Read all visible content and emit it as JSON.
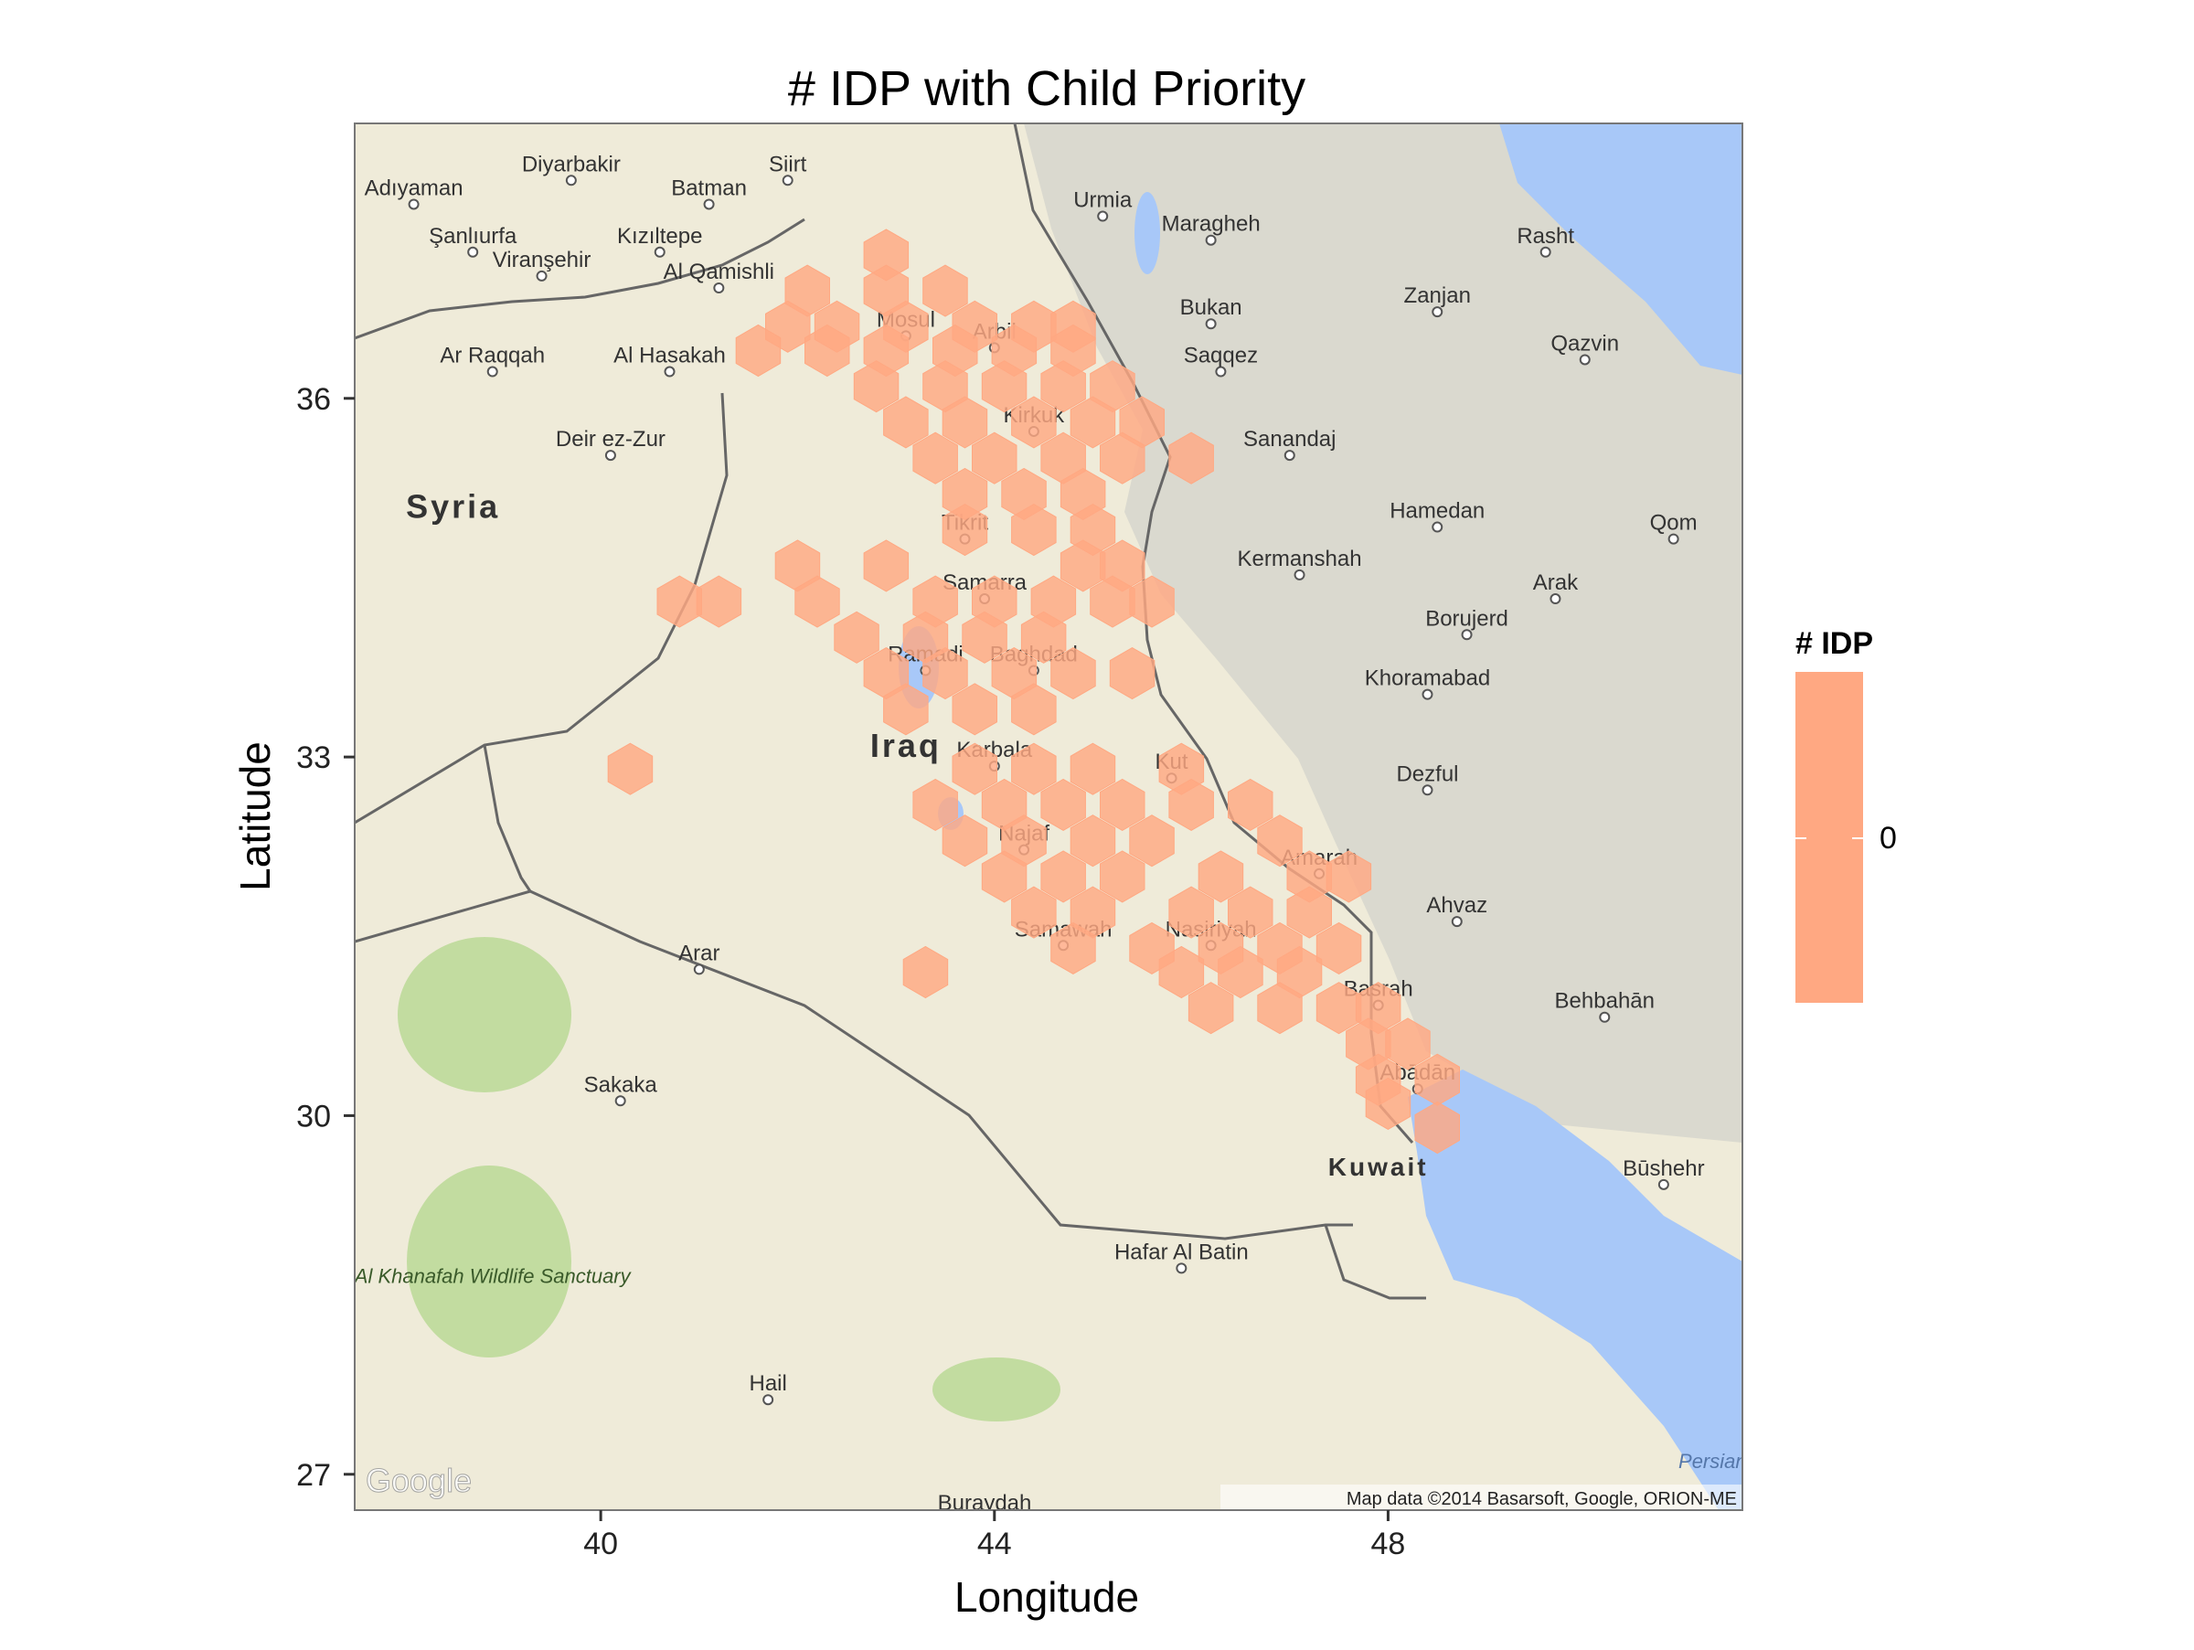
{
  "title": "# IDP with Child Priority",
  "axes": {
    "xlabel": "Longitude",
    "ylabel": "Latitude",
    "xlim": [
      37.5,
      51.6
    ],
    "ylim": [
      26.7,
      38.3
    ],
    "xticks": [
      40,
      44,
      48
    ],
    "yticks": [
      27,
      30,
      33,
      36
    ]
  },
  "legend": {
    "title": "# IDP",
    "tick_label": "0",
    "color": "#FFA882",
    "placement": "right"
  },
  "colors": {
    "fill": "#FFA882",
    "land": "#EFEBD9",
    "water": "#A8C8F8",
    "mountain": "#D6D6CC",
    "green": "#C2DCA0",
    "border": "#666666"
  },
  "map": {
    "attribution": "Map data ©2014 Basarsoft, Google, ORION-ME",
    "logo_text": "Google",
    "water_labels": [
      {
        "text": "Persian G",
        "lon": 50.95,
        "lat": 27.05
      }
    ],
    "countries": [
      {
        "name": "Syria",
        "lon": 38.5,
        "lat": 35.0
      },
      {
        "name": "Iraq",
        "lon": 43.1,
        "lat": 33.0
      },
      {
        "name": "Kuwait",
        "lon": 47.9,
        "lat": 29.5
      }
    ],
    "cities": [
      {
        "name": "Diyarbakir",
        "lon": 39.7,
        "lat": 37.9
      },
      {
        "name": "Siirt",
        "lon": 41.9,
        "lat": 37.9
      },
      {
        "name": "Batman",
        "lon": 41.1,
        "lat": 37.7
      },
      {
        "name": "Adıyaman",
        "lon": 38.1,
        "lat": 37.7
      },
      {
        "name": "Şanlıurfa",
        "lon": 38.7,
        "lat": 37.3
      },
      {
        "name": "Kızıltepe",
        "lon": 40.6,
        "lat": 37.3
      },
      {
        "name": "Viranşehir",
        "lon": 39.4,
        "lat": 37.1
      },
      {
        "name": "Al Qamishli",
        "lon": 41.2,
        "lat": 37.0
      },
      {
        "name": "Ar Raqqah",
        "lon": 38.9,
        "lat": 36.3
      },
      {
        "name": "Al Hasakah",
        "lon": 40.7,
        "lat": 36.3
      },
      {
        "name": "Deir ez-Zur",
        "lon": 40.1,
        "lat": 35.6
      },
      {
        "name": "Urmia",
        "lon": 45.1,
        "lat": 37.6
      },
      {
        "name": "Maragheh",
        "lon": 46.2,
        "lat": 37.4
      },
      {
        "name": "Rasht",
        "lon": 49.6,
        "lat": 37.3
      },
      {
        "name": "Zanjan",
        "lon": 48.5,
        "lat": 36.8
      },
      {
        "name": "Qazvin",
        "lon": 50.0,
        "lat": 36.4
      },
      {
        "name": "Bukan",
        "lon": 46.2,
        "lat": 36.7
      },
      {
        "name": "Saqqez",
        "lon": 46.3,
        "lat": 36.3
      },
      {
        "name": "Sanandaj",
        "lon": 47.0,
        "lat": 35.6
      },
      {
        "name": "Mosul",
        "lon": 43.1,
        "lat": 36.6
      },
      {
        "name": "Arbil",
        "lon": 44.0,
        "lat": 36.5
      },
      {
        "name": "Kirkuk",
        "lon": 44.4,
        "lat": 35.8
      },
      {
        "name": "Tikrit",
        "lon": 43.7,
        "lat": 34.9
      },
      {
        "name": "Samarra",
        "lon": 43.9,
        "lat": 34.4
      },
      {
        "name": "Ramadi",
        "lon": 43.3,
        "lat": 33.8
      },
      {
        "name": "Baghdad",
        "lon": 44.4,
        "lat": 33.8
      },
      {
        "name": "Karbala",
        "lon": 44.0,
        "lat": 33.0
      },
      {
        "name": "Kut",
        "lon": 45.8,
        "lat": 32.9
      },
      {
        "name": "Najaf",
        "lon": 44.3,
        "lat": 32.3
      },
      {
        "name": "Amarah",
        "lon": 47.3,
        "lat": 32.1
      },
      {
        "name": "Samawah",
        "lon": 44.7,
        "lat": 31.5
      },
      {
        "name": "Nasiriyah",
        "lon": 46.2,
        "lat": 31.5
      },
      {
        "name": "Basrah",
        "lon": 47.9,
        "lat": 31.0
      },
      {
        "name": "Abādān",
        "lon": 48.3,
        "lat": 30.3
      },
      {
        "name": "Hamedan",
        "lon": 48.5,
        "lat": 35.0
      },
      {
        "name": "Kermanshah",
        "lon": 47.1,
        "lat": 34.6
      },
      {
        "name": "Qom",
        "lon": 50.9,
        "lat": 34.9
      },
      {
        "name": "Arak",
        "lon": 49.7,
        "lat": 34.4
      },
      {
        "name": "Borujerd",
        "lon": 48.8,
        "lat": 34.1
      },
      {
        "name": "Khoramabad",
        "lon": 48.4,
        "lat": 33.6
      },
      {
        "name": "Dezful",
        "lon": 48.4,
        "lat": 32.8
      },
      {
        "name": "Ahvaz",
        "lon": 48.7,
        "lat": 31.7
      },
      {
        "name": "Behbahān",
        "lon": 50.2,
        "lat": 30.9
      },
      {
        "name": "Būshehr",
        "lon": 50.8,
        "lat": 29.5
      },
      {
        "name": "Arar",
        "lon": 41.0,
        "lat": 31.3
      },
      {
        "name": "Sakaka",
        "lon": 40.2,
        "lat": 30.2
      },
      {
        "name": "Hafar Al Batin",
        "lon": 45.9,
        "lat": 28.8
      },
      {
        "name": "Hail",
        "lon": 41.7,
        "lat": 27.7
      },
      {
        "name": "Buraydah",
        "lon": 43.9,
        "lat": 26.7
      }
    ],
    "parks": [
      {
        "name": "Al Khanafah Wildlife Sanctuary",
        "lon": 38.9,
        "lat": 28.6
      }
    ]
  },
  "chart_data": {
    "type": "hexbin",
    "title": "# IDP with Child Priority",
    "xlabel": "Longitude",
    "ylabel": "Latitude",
    "xlim": [
      37.5,
      51.6
    ],
    "ylim": [
      26.7,
      38.3
    ],
    "legend_title": "# IDP",
    "legend_value": "0",
    "bins": [
      {
        "lon": 42.9,
        "lat": 37.2
      },
      {
        "lon": 42.1,
        "lat": 36.9
      },
      {
        "lon": 42.9,
        "lat": 36.9
      },
      {
        "lon": 43.5,
        "lat": 36.9
      },
      {
        "lon": 41.9,
        "lat": 36.6
      },
      {
        "lon": 42.4,
        "lat": 36.6
      },
      {
        "lon": 43.1,
        "lat": 36.6
      },
      {
        "lon": 43.8,
        "lat": 36.6
      },
      {
        "lon": 44.4,
        "lat": 36.6
      },
      {
        "lon": 44.8,
        "lat": 36.6
      },
      {
        "lon": 41.6,
        "lat": 36.4
      },
      {
        "lon": 42.3,
        "lat": 36.4
      },
      {
        "lon": 42.9,
        "lat": 36.4
      },
      {
        "lon": 43.6,
        "lat": 36.4
      },
      {
        "lon": 44.2,
        "lat": 36.4
      },
      {
        "lon": 44.8,
        "lat": 36.4
      },
      {
        "lon": 42.8,
        "lat": 36.1
      },
      {
        "lon": 43.5,
        "lat": 36.1
      },
      {
        "lon": 44.1,
        "lat": 36.1
      },
      {
        "lon": 44.7,
        "lat": 36.1
      },
      {
        "lon": 45.2,
        "lat": 36.1
      },
      {
        "lon": 43.1,
        "lat": 35.8
      },
      {
        "lon": 43.7,
        "lat": 35.8
      },
      {
        "lon": 44.4,
        "lat": 35.8
      },
      {
        "lon": 45.0,
        "lat": 35.8
      },
      {
        "lon": 45.5,
        "lat": 35.8
      },
      {
        "lon": 43.4,
        "lat": 35.5
      },
      {
        "lon": 44.0,
        "lat": 35.5
      },
      {
        "lon": 44.7,
        "lat": 35.5
      },
      {
        "lon": 45.3,
        "lat": 35.5
      },
      {
        "lon": 46.0,
        "lat": 35.5
      },
      {
        "lon": 43.7,
        "lat": 35.2
      },
      {
        "lon": 44.3,
        "lat": 35.2
      },
      {
        "lon": 44.9,
        "lat": 35.2
      },
      {
        "lon": 43.7,
        "lat": 34.9
      },
      {
        "lon": 44.4,
        "lat": 34.9
      },
      {
        "lon": 45.0,
        "lat": 34.9
      },
      {
        "lon": 42.0,
        "lat": 34.6
      },
      {
        "lon": 42.9,
        "lat": 34.6
      },
      {
        "lon": 44.9,
        "lat": 34.6
      },
      {
        "lon": 45.3,
        "lat": 34.6
      },
      {
        "lon": 40.8,
        "lat": 34.3
      },
      {
        "lon": 41.2,
        "lat": 34.3
      },
      {
        "lon": 42.2,
        "lat": 34.3
      },
      {
        "lon": 43.4,
        "lat": 34.3
      },
      {
        "lon": 44.0,
        "lat": 34.3
      },
      {
        "lon": 44.6,
        "lat": 34.3
      },
      {
        "lon": 45.2,
        "lat": 34.3
      },
      {
        "lon": 45.6,
        "lat": 34.3
      },
      {
        "lon": 42.6,
        "lat": 34.0
      },
      {
        "lon": 43.3,
        "lat": 34.0
      },
      {
        "lon": 43.9,
        "lat": 34.0
      },
      {
        "lon": 44.5,
        "lat": 34.0
      },
      {
        "lon": 42.9,
        "lat": 33.7
      },
      {
        "lon": 43.5,
        "lat": 33.7
      },
      {
        "lon": 44.2,
        "lat": 33.7
      },
      {
        "lon": 44.8,
        "lat": 33.7
      },
      {
        "lon": 45.4,
        "lat": 33.7
      },
      {
        "lon": 43.1,
        "lat": 33.4
      },
      {
        "lon": 43.8,
        "lat": 33.4
      },
      {
        "lon": 44.4,
        "lat": 33.4
      },
      {
        "lon": 40.3,
        "lat": 32.9
      },
      {
        "lon": 43.8,
        "lat": 32.9
      },
      {
        "lon": 44.4,
        "lat": 32.9
      },
      {
        "lon": 45.0,
        "lat": 32.9
      },
      {
        "lon": 45.9,
        "lat": 32.9
      },
      {
        "lon": 43.4,
        "lat": 32.6
      },
      {
        "lon": 44.1,
        "lat": 32.6
      },
      {
        "lon": 44.7,
        "lat": 32.6
      },
      {
        "lon": 45.3,
        "lat": 32.6
      },
      {
        "lon": 46.0,
        "lat": 32.6
      },
      {
        "lon": 46.6,
        "lat": 32.6
      },
      {
        "lon": 43.7,
        "lat": 32.3
      },
      {
        "lon": 44.3,
        "lat": 32.3
      },
      {
        "lon": 45.0,
        "lat": 32.3
      },
      {
        "lon": 45.6,
        "lat": 32.3
      },
      {
        "lon": 46.9,
        "lat": 32.3
      },
      {
        "lon": 44.1,
        "lat": 32.0
      },
      {
        "lon": 44.7,
        "lat": 32.0
      },
      {
        "lon": 45.3,
        "lat": 32.0
      },
      {
        "lon": 46.3,
        "lat": 32.0
      },
      {
        "lon": 47.2,
        "lat": 32.0
      },
      {
        "lon": 47.6,
        "lat": 32.0
      },
      {
        "lon": 44.4,
        "lat": 31.7
      },
      {
        "lon": 45.0,
        "lat": 31.7
      },
      {
        "lon": 46.0,
        "lat": 31.7
      },
      {
        "lon": 46.6,
        "lat": 31.7
      },
      {
        "lon": 47.2,
        "lat": 31.7
      },
      {
        "lon": 44.8,
        "lat": 31.4
      },
      {
        "lon": 45.6,
        "lat": 31.4
      },
      {
        "lon": 46.3,
        "lat": 31.4
      },
      {
        "lon": 46.9,
        "lat": 31.4
      },
      {
        "lon": 47.5,
        "lat": 31.4
      },
      {
        "lon": 43.3,
        "lat": 31.2
      },
      {
        "lon": 45.9,
        "lat": 31.2
      },
      {
        "lon": 46.5,
        "lat": 31.2
      },
      {
        "lon": 47.1,
        "lat": 31.2
      },
      {
        "lon": 46.2,
        "lat": 30.9
      },
      {
        "lon": 46.9,
        "lat": 30.9
      },
      {
        "lon": 47.5,
        "lat": 30.9
      },
      {
        "lon": 47.9,
        "lat": 30.9
      },
      {
        "lon": 47.8,
        "lat": 30.6
      },
      {
        "lon": 48.2,
        "lat": 30.6
      },
      {
        "lon": 47.9,
        "lat": 30.3
      },
      {
        "lon": 48.5,
        "lat": 30.3
      },
      {
        "lon": 48.0,
        "lat": 30.1
      },
      {
        "lon": 48.5,
        "lat": 29.9
      }
    ]
  }
}
